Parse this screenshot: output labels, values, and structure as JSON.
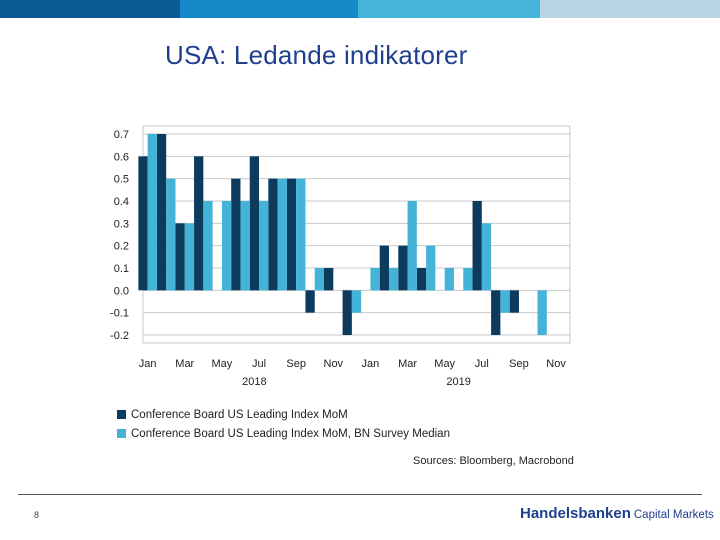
{
  "page": {
    "title": "USA: Ledande indikatorer",
    "page_number": "8",
    "brand_name": "Handelsbanken",
    "brand_sub": "Capital Markets",
    "top_bar_colors": [
      "#0c5a96",
      "#1689c9",
      "#46b4da",
      "#b9d5e4"
    ]
  },
  "colors": {
    "actual": "#0d3b5e",
    "median": "#44b3d8",
    "grid": "#c9c9c9",
    "axis_text": "#222222"
  },
  "chart_data": {
    "type": "bar",
    "title": "",
    "xlabel": "",
    "ylabel": "",
    "ylim": [
      -0.2,
      0.7
    ],
    "yticks": [
      0.7,
      0.6,
      0.5,
      0.4,
      0.3,
      0.2,
      0.1,
      0.0,
      -0.1,
      -0.2
    ],
    "ytick_labels": [
      "0.7",
      "0.6",
      "0.5",
      "0.4",
      "0.3",
      "0.2",
      "0.1",
      "0.0",
      "-0.1",
      "-0.2"
    ],
    "categories": [
      "2018-01",
      "2018-02",
      "2018-03",
      "2018-04",
      "2018-05",
      "2018-06",
      "2018-07",
      "2018-08",
      "2018-09",
      "2018-10",
      "2018-11",
      "2018-12",
      "2019-01",
      "2019-02",
      "2019-03",
      "2019-04",
      "2019-05",
      "2019-06",
      "2019-07",
      "2019-08",
      "2019-09",
      "2019-10",
      "2019-11"
    ],
    "xtick_labels": [
      "Jan",
      "Mar",
      "May",
      "Jul",
      "Sep",
      "Nov",
      "Jan",
      "Mar",
      "May",
      "Jul",
      "Sep",
      "Nov"
    ],
    "xtick_indices": [
      0,
      2,
      4,
      6,
      8,
      10,
      12,
      14,
      16,
      18,
      20,
      22
    ],
    "year_labels": [
      {
        "label": "2018",
        "center_index": 6
      },
      {
        "label": "2019",
        "center_index": 17
      }
    ],
    "grid": true,
    "series": [
      {
        "name": "Conference Board US Leading Index MoM",
        "color": "#0d3b5e",
        "values": [
          0.6,
          0.7,
          0.3,
          0.6,
          null,
          0.5,
          0.6,
          0.5,
          0.5,
          -0.1,
          0.1,
          -0.2,
          null,
          0.2,
          0.2,
          0.1,
          null,
          null,
          0.4,
          -0.2,
          -0.1,
          null,
          null
        ]
      },
      {
        "name": "Conference Board US Leading Index MoM, BN Survey Median",
        "color": "#44b3d8",
        "values": [
          0.7,
          0.5,
          0.3,
          0.4,
          0.4,
          0.4,
          0.4,
          0.5,
          0.5,
          0.1,
          null,
          -0.1,
          0.1,
          0.1,
          0.4,
          0.2,
          0.1,
          0.1,
          0.3,
          -0.1,
          null,
          -0.2,
          null
        ]
      }
    ],
    "legend_position": "bottom-left",
    "source": "Sources: Bloomberg, Macrobond"
  }
}
